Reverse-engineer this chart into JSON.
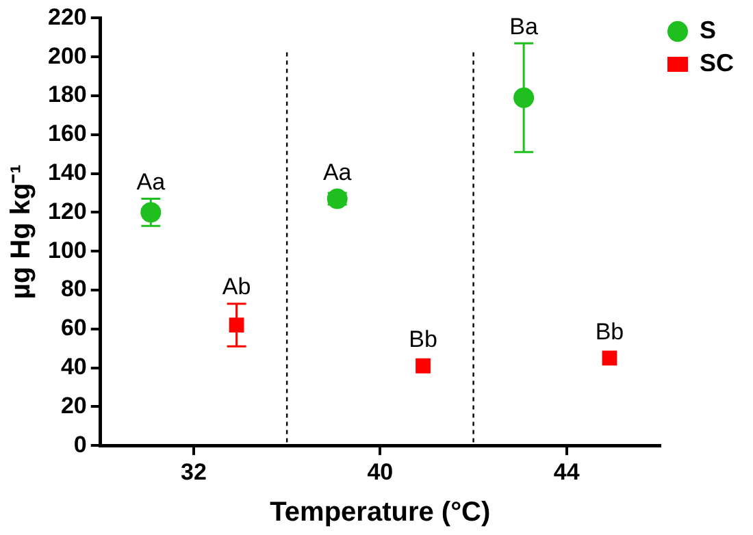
{
  "chart_data": {
    "type": "scatter",
    "xlabel": "Temperature (°C)",
    "ylabel": "µg Hg kg⁻¹",
    "categories": [
      "32",
      "40",
      "44"
    ],
    "ylim": [
      0,
      220
    ],
    "yticks": [
      0,
      20,
      40,
      60,
      80,
      100,
      120,
      140,
      160,
      180,
      200,
      220
    ],
    "grid": false,
    "legend": "top right",
    "series": [
      {
        "name": "S",
        "color": "#1fbf1f",
        "marker": "circle",
        "values": [
          120,
          127,
          179
        ],
        "errors": [
          7,
          3,
          28
        ],
        "value_labels": [
          "Aa",
          "Aa",
          "Ba"
        ]
      },
      {
        "name": "SC",
        "color": "#ff0000",
        "marker": "square",
        "values": [
          62,
          41,
          45
        ],
        "errors": [
          11,
          null,
          null
        ],
        "value_labels": [
          "Ab",
          "Bb",
          "Bb"
        ]
      }
    ]
  }
}
